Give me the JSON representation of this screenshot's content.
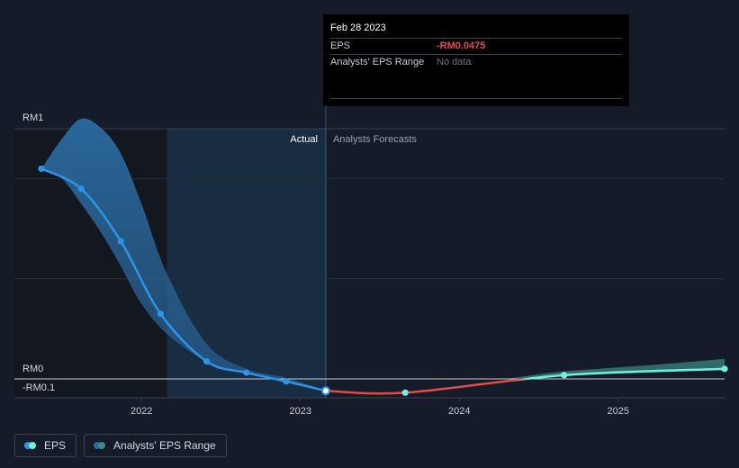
{
  "tooltip": {
    "date": "Feb 28 2023",
    "rows": [
      {
        "label": "EPS",
        "value": "-RM0.0475"
      },
      {
        "label": "Analysts' EPS Range",
        "value": "No data"
      }
    ]
  },
  "legend": {
    "eps_label": "EPS",
    "range_label": "Analysts' EPS Range"
  },
  "colors": {
    "background": "#151b28",
    "eps_actual": "#2e93e6",
    "eps_forecast_negative": "#e34b4b",
    "eps_forecast_positive": "#6ff0dc",
    "range_band": "#2b6aa0",
    "forecast_band": "#3d8a86",
    "grid": "#2c323d"
  },
  "chart_data": {
    "type": "line",
    "ylabel_top": "RM1",
    "ylabel_zero": "RM0",
    "ylabel_bottom": "-RM0.1",
    "ylim": [
      -0.1,
      1.0
    ],
    "x_ticks": [
      "2022",
      "2023",
      "2024",
      "2025"
    ],
    "x_tick_values": [
      2022.0,
      2023.0,
      2024.0,
      2025.0
    ],
    "xlim": [
      2021.2,
      2025.67
    ],
    "divider_x": 2023.16,
    "past_shade_start": 2022.16,
    "actual_label": "Actual",
    "forecast_label": "Analysts Forecasts",
    "grid": true,
    "legend_position": "bottom-left",
    "series": [
      {
        "name": "EPS",
        "kind": "actual",
        "x": [
          2021.37,
          2021.62,
          2021.87,
          2022.12,
          2022.41,
          2022.66,
          2022.91,
          2023.16
        ],
        "y": [
          0.84,
          0.76,
          0.55,
          0.26,
          0.07,
          0.025,
          -0.01,
          -0.0475
        ]
      },
      {
        "name": "EPS",
        "kind": "forecast",
        "x": [
          2023.16,
          2023.66,
          2024.66,
          2025.67
        ],
        "y": [
          -0.0475,
          -0.055,
          0.015,
          0.04
        ]
      },
      {
        "name": "Analysts' EPS Range",
        "kind": "range_actual",
        "x": [
          2021.37,
          2021.5,
          2021.62,
          2021.75,
          2021.87,
          2022.0,
          2022.16,
          2022.41,
          2022.66,
          2022.91,
          2023.16
        ],
        "upper": [
          0.84,
          0.96,
          1.04,
          1.0,
          0.9,
          0.7,
          0.42,
          0.14,
          0.04,
          0.005,
          -0.0475
        ],
        "lower": [
          0.84,
          0.8,
          0.7,
          0.58,
          0.45,
          0.3,
          0.18,
          0.07,
          0.02,
          -0.01,
          -0.0475
        ]
      },
      {
        "name": "Analysts' EPS Range",
        "kind": "range_forecast",
        "x": [
          2024.3,
          2024.66,
          2025.2,
          2025.67
        ],
        "upper": [
          0.0,
          0.03,
          0.055,
          0.08
        ],
        "lower": [
          0.0,
          0.012,
          0.025,
          0.035
        ]
      }
    ],
    "markers": [
      {
        "x": 2021.37,
        "y": 0.84,
        "color": "eps_actual"
      },
      {
        "x": 2021.62,
        "y": 0.76,
        "color": "eps_actual"
      },
      {
        "x": 2021.87,
        "y": 0.55,
        "color": "eps_actual"
      },
      {
        "x": 2022.12,
        "y": 0.26,
        "color": "eps_actual"
      },
      {
        "x": 2022.41,
        "y": 0.07,
        "color": "eps_actual"
      },
      {
        "x": 2022.66,
        "y": 0.025,
        "color": "eps_actual"
      },
      {
        "x": 2022.91,
        "y": -0.01,
        "color": "eps_actual"
      },
      {
        "x": 2023.16,
        "y": -0.0475,
        "color": "highlight"
      },
      {
        "x": 2023.66,
        "y": -0.055,
        "color": "eps_forecast_positive"
      },
      {
        "x": 2024.66,
        "y": 0.015,
        "color": "eps_forecast_positive"
      },
      {
        "x": 2025.67,
        "y": 0.04,
        "color": "eps_forecast_positive"
      }
    ]
  }
}
